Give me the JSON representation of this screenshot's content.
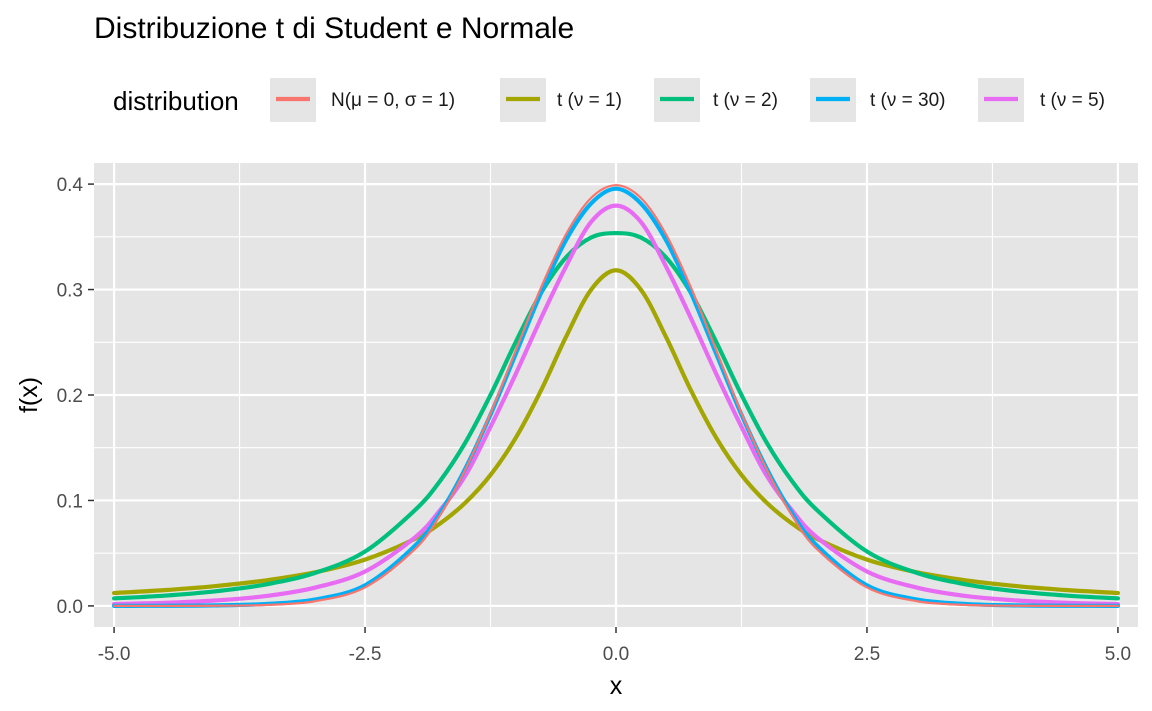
{
  "chart_data": {
    "type": "line",
    "title": "Distribuzione t di Student e Normale",
    "xlabel": "x",
    "ylabel": "f(x)",
    "xlim": [
      -5.2,
      5.2
    ],
    "ylim": [
      -0.02,
      0.42
    ],
    "x_ticks": [
      -5.0,
      -2.5,
      0.0,
      2.5,
      5.0
    ],
    "x_tick_labels": [
      "-5.0",
      "-2.5",
      "0.0",
      "2.5",
      "5.0"
    ],
    "y_ticks": [
      0.0,
      0.1,
      0.2,
      0.3,
      0.4
    ],
    "y_tick_labels": [
      "0.0",
      "0.1",
      "0.2",
      "0.3",
      "0.4"
    ],
    "grid": true,
    "panel_background": "#e5e5e5",
    "legend": {
      "title": "distribution",
      "placement": "top"
    },
    "series": [
      {
        "name": "N(μ = 0, σ = 1)",
        "color": "#F8766D",
        "x": [
          -5,
          -4.5,
          -4,
          -3.5,
          -3,
          -2.5,
          -2,
          -1.75,
          -1.5,
          -1.25,
          -1,
          -0.75,
          -0.5,
          -0.25,
          0,
          0.25,
          0.5,
          0.75,
          1,
          1.25,
          1.5,
          1.75,
          2,
          2.5,
          3,
          3.5,
          4,
          4.5,
          5
        ],
        "y": [
          1.5e-06,
          1.6e-05,
          0.000134,
          0.000873,
          0.004432,
          0.017528,
          0.053991,
          0.086277,
          0.129518,
          0.182649,
          0.241971,
          0.301137,
          0.352065,
          0.386668,
          0.398942,
          0.386668,
          0.352065,
          0.301137,
          0.241971,
          0.182649,
          0.129518,
          0.086277,
          0.053991,
          0.017528,
          0.004432,
          0.000873,
          0.000134,
          1.6e-05,
          1.5e-06
        ]
      },
      {
        "name": "t (ν = 1)",
        "color": "#A3A500",
        "x": [
          -5,
          -4.5,
          -4,
          -3.5,
          -3,
          -2.5,
          -2,
          -1.75,
          -1.5,
          -1.25,
          -1,
          -0.75,
          -0.5,
          -0.25,
          0,
          0.25,
          0.5,
          0.75,
          1,
          1.25,
          1.5,
          1.75,
          2,
          2.5,
          3,
          3.5,
          4,
          4.5,
          5
        ],
        "y": [
          0.012243,
          0.014971,
          0.018724,
          0.024061,
          0.031831,
          0.043905,
          0.063662,
          0.078357,
          0.097942,
          0.12419,
          0.159155,
          0.203718,
          0.254648,
          0.299599,
          0.31831,
          0.299599,
          0.254648,
          0.203718,
          0.159155,
          0.12419,
          0.097942,
          0.078357,
          0.063662,
          0.043905,
          0.031831,
          0.024061,
          0.018724,
          0.014971,
          0.012243
        ]
      },
      {
        "name": "t (ν = 2)",
        "color": "#00BF7D",
        "x": [
          -5,
          -4.5,
          -4,
          -3.5,
          -3,
          -2.5,
          -2,
          -1.75,
          -1.5,
          -1.25,
          -1,
          -0.75,
          -0.5,
          -0.25,
          0,
          0.25,
          0.5,
          0.75,
          1,
          1.25,
          1.5,
          1.75,
          2,
          2.5,
          3,
          3.5,
          4,
          4.5,
          5
        ],
        "y": [
          0.007127,
          0.009714,
          0.013722,
          0.020146,
          0.031231,
          0.051576,
          0.091073,
          0.11886,
          0.155037,
          0.200036,
          0.25,
          0.296297,
          0.33021,
          0.349199,
          0.353553,
          0.349199,
          0.33021,
          0.296297,
          0.25,
          0.200036,
          0.155037,
          0.11886,
          0.091073,
          0.051576,
          0.031231,
          0.020146,
          0.013722,
          0.009714,
          0.007127
        ]
      },
      {
        "name": "t (ν = 30)",
        "color": "#00B0F6",
        "x": [
          -5,
          -4.5,
          -4,
          -3.5,
          -3,
          -2.5,
          -2,
          -1.75,
          -1.5,
          -1.25,
          -1,
          -0.75,
          -0.5,
          -0.25,
          0,
          0.25,
          0.5,
          0.75,
          1,
          1.25,
          1.5,
          1.75,
          2,
          2.5,
          3,
          3.5,
          4,
          4.5,
          5
        ],
        "y": [
          3e-05,
          0.00012,
          0.00047,
          0.00176,
          0.00601,
          0.01952,
          0.05732,
          0.08844,
          0.13046,
          0.18131,
          0.23868,
          0.29612,
          0.34649,
          0.38143,
          0.39563,
          0.38143,
          0.34649,
          0.29612,
          0.23868,
          0.18131,
          0.13046,
          0.08844,
          0.05732,
          0.01952,
          0.00601,
          0.00176,
          0.00047,
          0.00012,
          3e-05
        ]
      },
      {
        "name": "t (ν = 5)",
        "color": "#E76BF3",
        "x": [
          -5,
          -4.5,
          -4,
          -3.5,
          -3,
          -2.5,
          -2,
          -1.75,
          -1.5,
          -1.25,
          -1,
          -0.75,
          -0.5,
          -0.25,
          0,
          0.25,
          0.5,
          0.75,
          1,
          1.25,
          1.5,
          1.75,
          2,
          2.5,
          3,
          3.5,
          4,
          4.5,
          5
        ],
        "y": [
          0.001758,
          0.002854,
          0.005123,
          0.0092,
          0.017292,
          0.032639,
          0.06509,
          0.091012,
          0.1236,
          0.1698,
          0.21968,
          0.2721,
          0.32151,
          0.3639,
          0.379607,
          0.3639,
          0.32151,
          0.2721,
          0.21968,
          0.1698,
          0.1236,
          0.091012,
          0.06509,
          0.032639,
          0.017292,
          0.0092,
          0.005123,
          0.002854,
          0.001758
        ]
      }
    ]
  }
}
